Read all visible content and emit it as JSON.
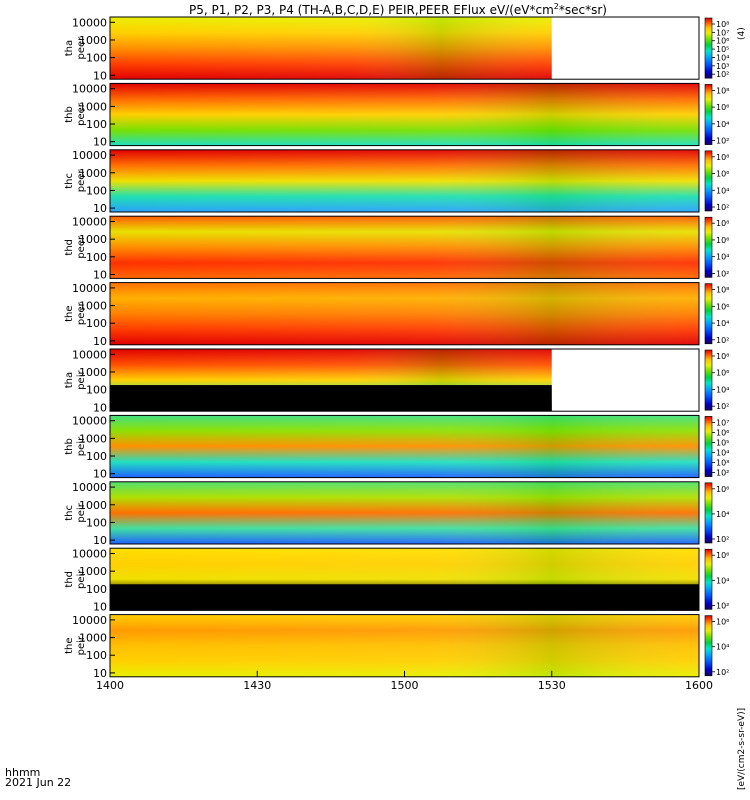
{
  "title": "P5, P1, P2, P3, P4 (TH-A,B,C,D,E) PEIR,PEER EFlux eV/(eV*cm",
  "title_sup": "2",
  "title_tail": "*sec*sr)",
  "colors": {
    "scale": [
      "#000000",
      "#1a0060",
      "#0000c8",
      "#0050ff",
      "#00a0ff",
      "#00e6c8",
      "#00d040",
      "#70e000",
      "#e8f000",
      "#ffc000",
      "#ff5a00",
      "#e00000"
    ]
  },
  "time_axis": {
    "tick_labels": [
      "1400",
      "1430",
      "1500",
      "1530",
      "1600"
    ],
    "tick_values_min": [
      0,
      30,
      60,
      90,
      120
    ],
    "range_min": [
      0,
      120
    ],
    "row1_label": "hhmm",
    "row2_label": "2021 Jun 22"
  },
  "right_strip_labels": [
    "(4)",
    "[eV/(cm2-s-sr-eV)]"
  ],
  "chart_data": [
    {
      "type": "heatmap",
      "probe": "tha",
      "species": "peer",
      "ylabel_1": "tha",
      "ylabel_2": "peer",
      "yscale": "log",
      "ylim": [
        6,
        20000
      ],
      "y_tick_labels": [
        "10000",
        "1000",
        "100",
        "10"
      ],
      "cbar_labels": [
        "10⁸",
        "10⁷",
        "10⁶",
        "10⁵",
        "10⁴",
        "10³",
        "10²"
      ],
      "data_end_min": 90,
      "black_floor": false
    },
    {
      "type": "heatmap",
      "probe": "thb",
      "species": "peer",
      "ylabel_1": "thb",
      "ylabel_2": "peer",
      "yscale": "log",
      "ylim": [
        6,
        20000
      ],
      "y_tick_labels": [
        "10000",
        "1000",
        "100",
        "10"
      ],
      "cbar_labels": [
        "10⁸",
        "10⁶",
        "10⁴",
        "10²"
      ],
      "data_end_min": 120,
      "black_floor": false
    },
    {
      "type": "heatmap",
      "probe": "thc",
      "species": "peer",
      "ylabel_1": "thc",
      "ylabel_2": "peer",
      "yscale": "log",
      "ylim": [
        6,
        20000
      ],
      "y_tick_labels": [
        "10000",
        "1000",
        "100",
        "10"
      ],
      "cbar_labels": [
        "10⁸",
        "10⁶",
        "10⁴",
        "10²"
      ],
      "data_end_min": 120,
      "black_floor": false
    },
    {
      "type": "heatmap",
      "probe": "thd",
      "species": "peer",
      "ylabel_1": "thd",
      "ylabel_2": "peer",
      "yscale": "log",
      "ylim": [
        6,
        20000
      ],
      "y_tick_labels": [
        "10000",
        "1000",
        "100",
        "10"
      ],
      "cbar_labels": [
        "10⁸",
        "10⁶",
        "10⁴",
        "10²"
      ],
      "data_end_min": 120,
      "black_floor": false
    },
    {
      "type": "heatmap",
      "probe": "the",
      "species": "peer",
      "ylabel_1": "the",
      "ylabel_2": "peer",
      "yscale": "log",
      "ylim": [
        6,
        20000
      ],
      "y_tick_labels": [
        "10000",
        "1000",
        "100",
        "10"
      ],
      "cbar_labels": [
        "10⁸",
        "10⁶",
        "10⁴",
        "10²"
      ],
      "data_end_min": 120,
      "black_floor": false
    },
    {
      "type": "heatmap",
      "probe": "tha",
      "species": "peir",
      "ylabel_1": "tha",
      "ylabel_2": "peir",
      "yscale": "log",
      "ylim": [
        6,
        20000
      ],
      "y_tick_labels": [
        "10000",
        "1000",
        "100",
        "10"
      ],
      "cbar_labels": [
        "10⁸",
        "10⁶",
        "10⁴",
        "10²"
      ],
      "data_end_min": 90,
      "black_floor": true
    },
    {
      "type": "heatmap",
      "probe": "thb",
      "species": "peir",
      "ylabel_1": "thb",
      "ylabel_2": "peir",
      "yscale": "log",
      "ylim": [
        6,
        20000
      ],
      "y_tick_labels": [
        "10000",
        "1000",
        "100",
        "10"
      ],
      "cbar_labels": [
        "10⁷",
        "10⁶",
        "10⁵",
        "10⁴",
        "10³",
        "10²"
      ],
      "data_end_min": 120,
      "black_floor": false
    },
    {
      "type": "heatmap",
      "probe": "thc",
      "species": "peir",
      "ylabel_1": "thc",
      "ylabel_2": "peir",
      "yscale": "log",
      "ylim": [
        6,
        20000
      ],
      "y_tick_labels": [
        "10000",
        "1000",
        "100",
        "10"
      ],
      "cbar_labels": [
        "10⁶",
        "10⁴",
        "10²"
      ],
      "data_end_min": 120,
      "black_floor": false
    },
    {
      "type": "heatmap",
      "probe": "thd",
      "species": "peir",
      "ylabel_1": "thd",
      "ylabel_2": "peir",
      "yscale": "log",
      "ylim": [
        6,
        20000
      ],
      "y_tick_labels": [
        "10000",
        "1000",
        "100",
        "10"
      ],
      "cbar_labels": [
        "10⁶",
        "10⁴",
        "10²"
      ],
      "data_end_min": 120,
      "black_floor": true
    },
    {
      "type": "heatmap",
      "probe": "the",
      "species": "peir",
      "ylabel_1": "the",
      "ylabel_2": "peir",
      "yscale": "log",
      "ylim": [
        6,
        20000
      ],
      "y_tick_labels": [
        "10000",
        "1000",
        "100",
        "10"
      ],
      "cbar_labels": [
        "10⁶",
        "10⁴",
        "10²"
      ],
      "data_end_min": 120,
      "black_floor": false
    }
  ]
}
